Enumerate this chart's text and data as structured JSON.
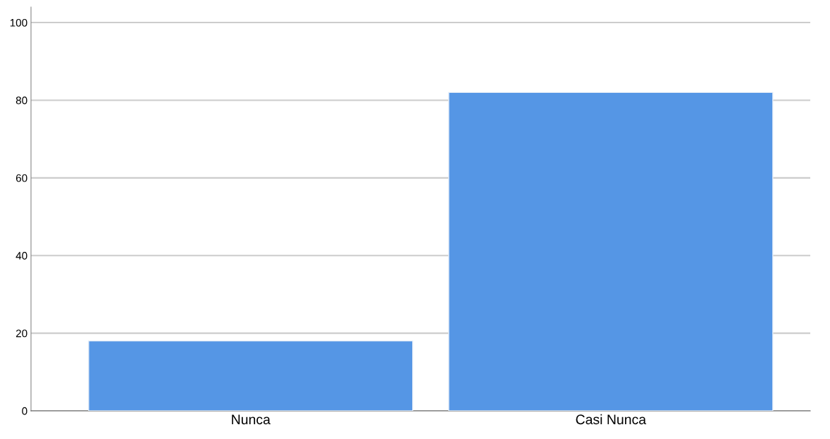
{
  "chart_data": {
    "type": "bar",
    "categories": [
      "Nunca",
      "Casi Nunca"
    ],
    "values": [
      18,
      82
    ],
    "color": "#5596e5",
    "ylim": [
      0,
      104
    ],
    "yticks": [
      0,
      20,
      40,
      60,
      80,
      100
    ],
    "grid": "y",
    "legend": false
  }
}
